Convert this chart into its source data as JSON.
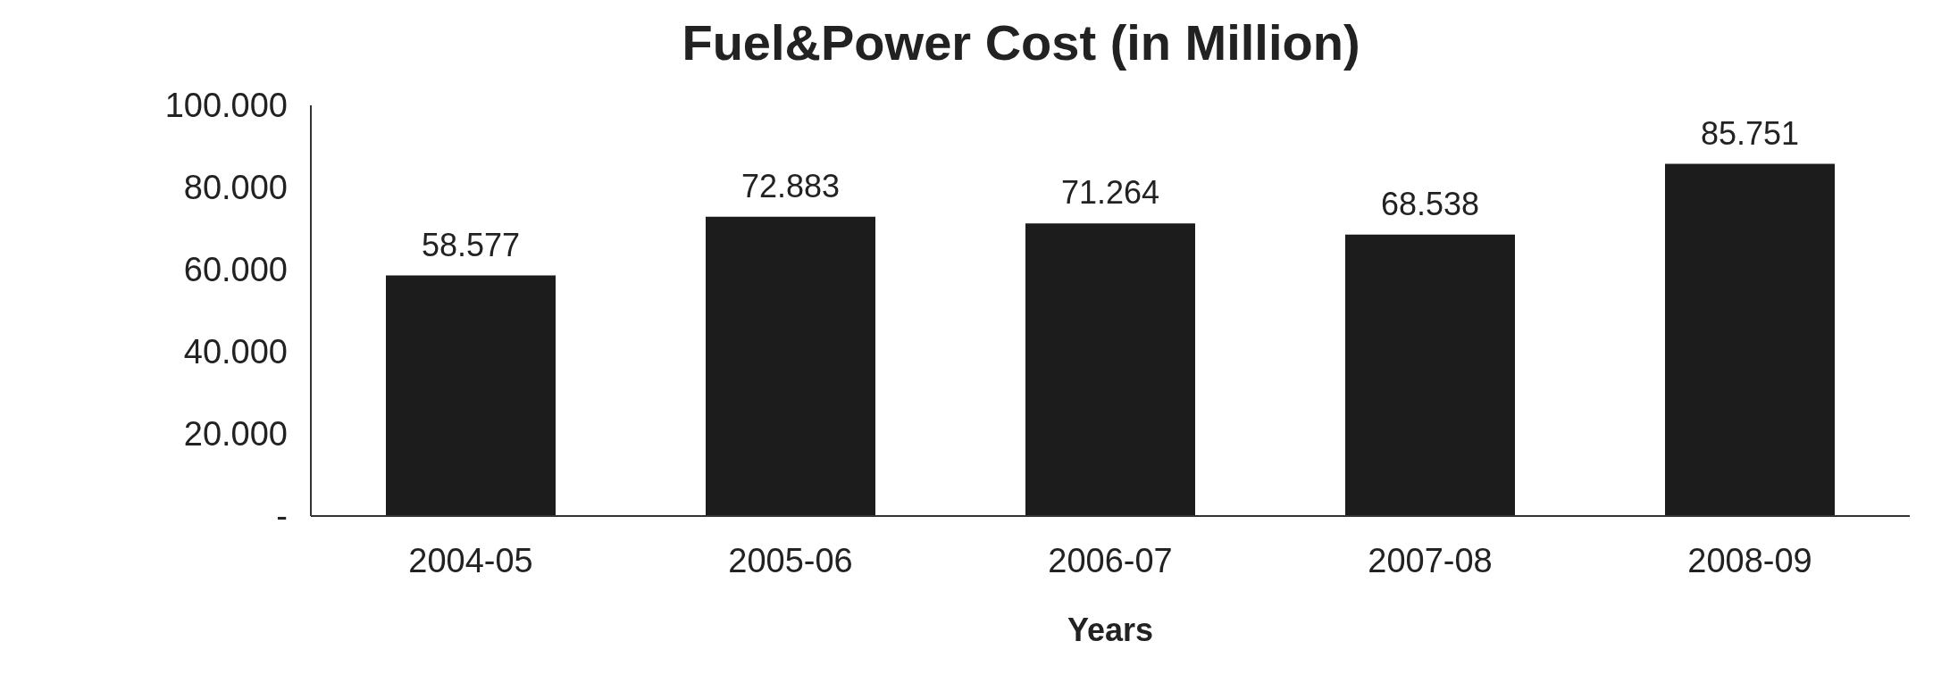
{
  "chart_data": {
    "type": "bar",
    "title": "Fuel&Power Cost (in Million)",
    "xlabel": "Years",
    "categories": [
      "2004-05",
      "2005-06",
      "2006-07",
      "2007-08",
      "2008-09"
    ],
    "values": [
      58.577,
      72.883,
      71.264,
      68.538,
      85.751
    ],
    "color": "#1c1c1c",
    "ylim": [
      0,
      100
    ],
    "yticks": [
      {
        "value": 0,
        "label": "-"
      },
      {
        "value": 20,
        "label": "20.000"
      },
      {
        "value": 40,
        "label": "40.000"
      },
      {
        "value": 60,
        "label": "60.000"
      },
      {
        "value": 80,
        "label": "80.000"
      },
      {
        "value": 100,
        "label": "100.000"
      }
    ],
    "data_labels": true,
    "grid": false,
    "legend": false
  }
}
